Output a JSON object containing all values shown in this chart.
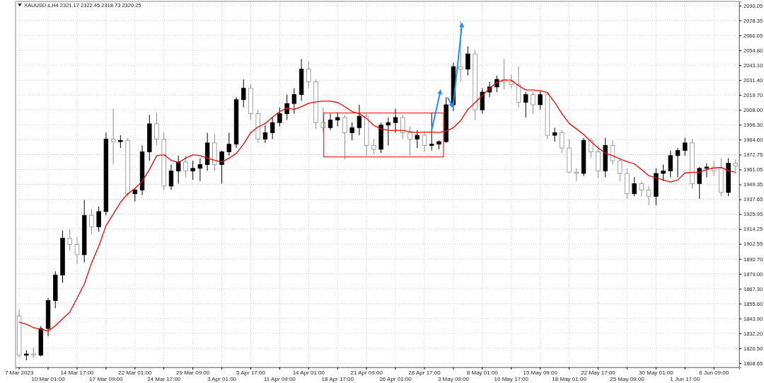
{
  "chart_data": {
    "type": "candlestick",
    "title": "XAUUSD.s,H4  2321.17 2322.45 2318.73 2320.25",
    "categories": [
      "7 Mar 2023",
      null,
      null,
      null,
      "10 Mar 01:00",
      null,
      null,
      null,
      "14 Mar 17:00",
      null,
      null,
      null,
      "17 Mar 09:00",
      null,
      null,
      null,
      "22 Mar 01:00",
      null,
      null,
      null,
      "24 Mar 17:00",
      null,
      null,
      null,
      "29 Mar 09:00",
      null,
      null,
      null,
      "3 Apr 01:00",
      null,
      null,
      null,
      "5 Apr 17:00",
      null,
      null,
      null,
      "11 Apr 09:00",
      null,
      null,
      null,
      "14 Apr 01:00",
      null,
      null,
      null,
      "18 Apr 17:00",
      null,
      null,
      null,
      "21 Apr 09:00",
      null,
      null,
      null,
      "26 Apr 01:00",
      null,
      null,
      null,
      "28 Apr 17:00",
      null,
      null,
      null,
      "3 May 09:00",
      null,
      null,
      null,
      "8 May 01:00",
      null,
      null,
      null,
      "10 May 17:00",
      null,
      null,
      null,
      "15 May 09:00",
      null,
      null,
      null,
      "18 May 01:00",
      null,
      null,
      null,
      "22 May 17:00",
      null,
      null,
      null,
      "25 May 09:00",
      null,
      null,
      null,
      "30 May 01:00",
      null,
      null,
      null,
      "1 Jun 17:00",
      null,
      null,
      null,
      "6 Jun 09:00",
      null,
      null,
      null
    ],
    "ohlc": [
      [
        1846,
        1851,
        1813,
        1815
      ],
      [
        1815,
        1819,
        1811,
        1816
      ],
      [
        1816,
        1821,
        1813,
        1815
      ],
      [
        1815,
        1838,
        1814,
        1836
      ],
      [
        1836,
        1860,
        1830,
        1858
      ],
      [
        1858,
        1881,
        1852,
        1878
      ],
      [
        1878,
        1913,
        1872,
        1907
      ],
      [
        1907,
        1914,
        1897,
        1902
      ],
      [
        1902,
        1908,
        1887,
        1894
      ],
      [
        1894,
        1937,
        1888,
        1925
      ],
      [
        1925,
        1930,
        1910,
        1916
      ],
      [
        1916,
        1932,
        1912,
        1928
      ],
      [
        1928,
        1990,
        1925,
        1985
      ],
      [
        1985,
        2009,
        1965,
        1983
      ],
      [
        1983,
        1988,
        1978,
        1984
      ],
      [
        1984,
        1986,
        1940,
        1942
      ],
      [
        1942,
        1946,
        1936,
        1945
      ],
      [
        1945,
        1980,
        1941,
        1975
      ],
      [
        1975,
        2004,
        1968,
        1997
      ],
      [
        1997,
        2006,
        1980,
        1985
      ],
      [
        1985,
        1990,
        1945,
        1948
      ],
      [
        1948,
        1965,
        1945,
        1960
      ],
      [
        1960,
        1972,
        1950,
        1967
      ],
      [
        1967,
        1972,
        1955,
        1960
      ],
      [
        1960,
        1968,
        1953,
        1962
      ],
      [
        1962,
        1970,
        1952,
        1965
      ],
      [
        1965,
        1990,
        1960,
        1982
      ],
      [
        1982,
        1989,
        1960,
        1965
      ],
      [
        1965,
        1976,
        1950,
        1975
      ],
      [
        1975,
        1990,
        1972,
        1981
      ],
      [
        1981,
        2018,
        1978,
        2016
      ],
      [
        2016,
        2032,
        2010,
        2025
      ],
      [
        2025,
        2028,
        2000,
        2005
      ],
      [
        2005,
        2008,
        1982,
        1985
      ],
      [
        1985,
        1996,
        1982,
        1990
      ],
      [
        1990,
        2002,
        1985,
        1998
      ],
      [
        1998,
        2010,
        1995,
        2005
      ],
      [
        2005,
        2020,
        2000,
        2013
      ],
      [
        2013,
        2025,
        2005,
        2020
      ],
      [
        2020,
        2048,
        2015,
        2040
      ],
      [
        2040,
        2046,
        2025,
        2030
      ],
      [
        2030,
        2032,
        1993,
        1998
      ],
      [
        1998,
        2010,
        1990,
        1994
      ],
      [
        1994,
        2005,
        1992,
        2000
      ],
      [
        2000,
        2006,
        1995,
        2002
      ],
      [
        2002,
        2004,
        1969,
        1990
      ],
      [
        1990,
        1998,
        1984,
        1994
      ],
      [
        1994,
        2012,
        1988,
        2003
      ],
      [
        2003,
        2005,
        1972,
        1980
      ],
      [
        1980,
        1985,
        1973,
        1977
      ],
      [
        1977,
        1998,
        1974,
        1996
      ],
      [
        1996,
        2002,
        1980,
        1998
      ],
      [
        1998,
        2009,
        1990,
        2002
      ],
      [
        2002,
        2004,
        1985,
        1990
      ],
      [
        1990,
        1995,
        1972,
        1985
      ],
      [
        1985,
        1992,
        1978,
        1988
      ],
      [
        1988,
        1991,
        1975,
        1980
      ],
      [
        1980,
        2006,
        1976,
        1981
      ],
      [
        1981,
        1984,
        1977,
        1983
      ],
      [
        1983,
        2018,
        1982,
        2012
      ],
      [
        2012,
        2045,
        2007,
        2042
      ],
      [
        2042,
        2078,
        2030,
        2040
      ],
      [
        2040,
        2058,
        2035,
        2052
      ],
      [
        2052,
        2055,
        2000,
        2008
      ],
      [
        2008,
        2025,
        2005,
        2022
      ],
      [
        2022,
        2030,
        2018,
        2026
      ],
      [
        2026,
        2035,
        2022,
        2032
      ],
      [
        2032,
        2048,
        2024,
        2030
      ],
      [
        2030,
        2036,
        2025,
        2028
      ],
      [
        2028,
        2042,
        2010,
        2014
      ],
      [
        2014,
        2022,
        2002,
        2020
      ],
      [
        2020,
        2022,
        2005,
        2012
      ],
      [
        2012,
        2023,
        2008,
        2020
      ],
      [
        2020,
        2022,
        1985,
        1988
      ],
      [
        1988,
        1994,
        1983,
        1990
      ],
      [
        1990,
        1992,
        1974,
        1978
      ],
      [
        1978,
        1985,
        1958,
        1959
      ],
      [
        1959,
        1962,
        1952,
        1958
      ],
      [
        1958,
        1986,
        1956,
        1984
      ],
      [
        1984,
        1986,
        1970,
        1975
      ],
      [
        1975,
        1980,
        1954,
        1960
      ],
      [
        1960,
        1986,
        1955,
        1980
      ],
      [
        1980,
        1984,
        1965,
        1968
      ],
      [
        1968,
        1970,
        1952,
        1958
      ],
      [
        1958,
        1962,
        1938,
        1942
      ],
      [
        1942,
        1955,
        1940,
        1950
      ],
      [
        1950,
        1952,
        1940,
        1945
      ],
      [
        1945,
        1948,
        1933,
        1940
      ],
      [
        1940,
        1962,
        1933,
        1958
      ],
      [
        1958,
        1965,
        1952,
        1960
      ],
      [
        1960,
        1976,
        1955,
        1972
      ],
      [
        1972,
        1978,
        1955,
        1976
      ],
      [
        1976,
        1986,
        1972,
        1982
      ],
      [
        1982,
        1985,
        1946,
        1950
      ],
      [
        1950,
        1963,
        1938,
        1962
      ],
      [
        1962,
        1966,
        1955,
        1963
      ],
      [
        1963,
        1968,
        1956,
        1960
      ],
      [
        1962,
        1970,
        1940,
        1943
      ],
      [
        1943,
        1970,
        1940,
        1966
      ],
      [
        1966,
        1969,
        1960,
        1964
      ]
    ],
    "series": [
      {
        "type": "line",
        "color": "#ff0000",
        "values": [
          1841,
          1839.4,
          1836.6,
          1835.4,
          1834,
          1838.3,
          1843.7,
          1849,
          1860,
          1871,
          1887.6,
          1900.8,
          1917,
          1926,
          1935.3,
          1942,
          1946.3,
          1951.8,
          1961.1,
          1972,
          1972.7,
          1968.3,
          1966.6,
          1970,
          1972.7,
          1972,
          1970,
          1968.3,
          1967,
          1970,
          1973.8,
          1981,
          1990.2,
          1994.6,
          1997.3,
          2002.3,
          2006.7,
          2009.4,
          2008.3,
          2010.5,
          2013.2,
          2014.3,
          2014.9,
          2014.9,
          2013.8,
          2010.5,
          2006.7,
          2005,
          2001.2,
          1995.7,
          1993,
          1991.9,
          1991.9,
          1991.9,
          1990.8,
          1990.2,
          1990.5,
          1990.5,
          1990.2,
          1991.3,
          1994,
          1999.5,
          2008.3,
          2013.8,
          2019.3,
          2024.8,
          2029.7,
          2031.4,
          2031.4,
          2027,
          2023.6,
          2023.6,
          2023.1,
          2021.5,
          2013.8,
          2005,
          1997.3,
          1993,
          1988.6,
          1983,
          1978,
          1973.8,
          1972,
          1969.4,
          1967.2,
          1965.5,
          1961.1,
          1956.2,
          1954.5,
          1952.9,
          1951.2,
          1952.9,
          1958.4,
          1958.9,
          1958.9,
          1961.1,
          1962.2,
          1962.8,
          1960,
          1958.9
        ]
      }
    ],
    "ylim": [
      1805.4,
      2093.3
    ],
    "yticks": [
      2090.05,
      2078.35,
      2066.65,
      {
        "value": 2054.8,
        "label": "2054.80"
      },
      {
        "value": 2043.1,
        "label": "2043.10"
      },
      {
        "value": 2031.4,
        "label": "2031.40"
      },
      {
        "value": 2019.7,
        "label": "2019.70"
      },
      {
        "value": 2008,
        "label": "2008.00"
      },
      {
        "value": 1996.3,
        "label": "1996.30"
      },
      {
        "value": 1984.6,
        "label": "1984.60"
      },
      1972.75,
      1961.05,
      1949.35,
      1937.65,
      1925.95,
      1914.25,
      1902.55,
      {
        "value": 1890.7,
        "label": "1890.70"
      },
      {
        "value": 1879,
        "label": "1879.00"
      },
      {
        "value": 1867.3,
        "label": "1867.30"
      },
      {
        "value": 1855.6,
        "label": "1855.60"
      },
      {
        "value": 1843.9,
        "label": "1843.90"
      },
      {
        "value": 1832.2,
        "label": "1832.20"
      },
      {
        "value": 1820.5,
        "label": "1820.50"
      },
      1808.65
    ],
    "grid": true
  }
}
